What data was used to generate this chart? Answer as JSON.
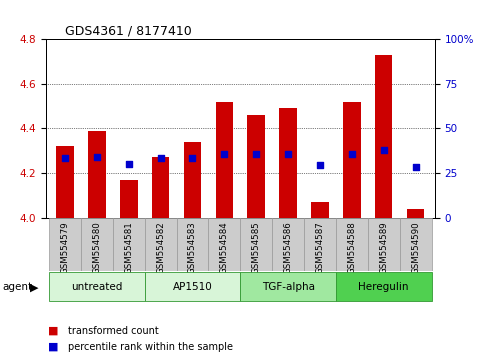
{
  "title": "GDS4361 / 8177410",
  "samples": [
    "GSM554579",
    "GSM554580",
    "GSM554581",
    "GSM554582",
    "GSM554583",
    "GSM554584",
    "GSM554585",
    "GSM554586",
    "GSM554587",
    "GSM554588",
    "GSM554589",
    "GSM554590"
  ],
  "bar_values": [
    4.32,
    4.39,
    4.17,
    4.27,
    4.34,
    4.52,
    4.46,
    4.49,
    4.07,
    4.52,
    4.73,
    4.04
  ],
  "bar_base": 4.0,
  "percentile_values": [
    4.265,
    4.27,
    4.24,
    4.265,
    4.265,
    4.285,
    4.285,
    4.285,
    4.235,
    4.285,
    4.305,
    4.225
  ],
  "agents": [
    {
      "label": "untreated",
      "start": 0,
      "end": 3,
      "color": "#d8f5d8"
    },
    {
      "label": "AP1510",
      "start": 3,
      "end": 6,
      "color": "#d8f5d8"
    },
    {
      "label": "TGF-alpha",
      "start": 6,
      "end": 9,
      "color": "#a0e8a0"
    },
    {
      "label": "Heregulin",
      "start": 9,
      "end": 12,
      "color": "#50d050"
    }
  ],
  "ylim": [
    4.0,
    4.8
  ],
  "yticks_left": [
    4.0,
    4.2,
    4.4,
    4.6,
    4.8
  ],
  "yticks_right": [
    0,
    25,
    50,
    75,
    100
  ],
  "bar_color": "#cc0000",
  "dot_color": "#0000cc",
  "bar_width": 0.55,
  "grid_color": "#000000",
  "bg_color": "#ffffff",
  "plot_bg": "#ffffff",
  "tick_label_color_left": "#cc0000",
  "tick_label_color_right": "#0000cc",
  "legend_items": [
    {
      "label": "transformed count",
      "color": "#cc0000"
    },
    {
      "label": "percentile rank within the sample",
      "color": "#0000cc"
    }
  ],
  "agent_label": "agent",
  "label_bg": "#cccccc"
}
